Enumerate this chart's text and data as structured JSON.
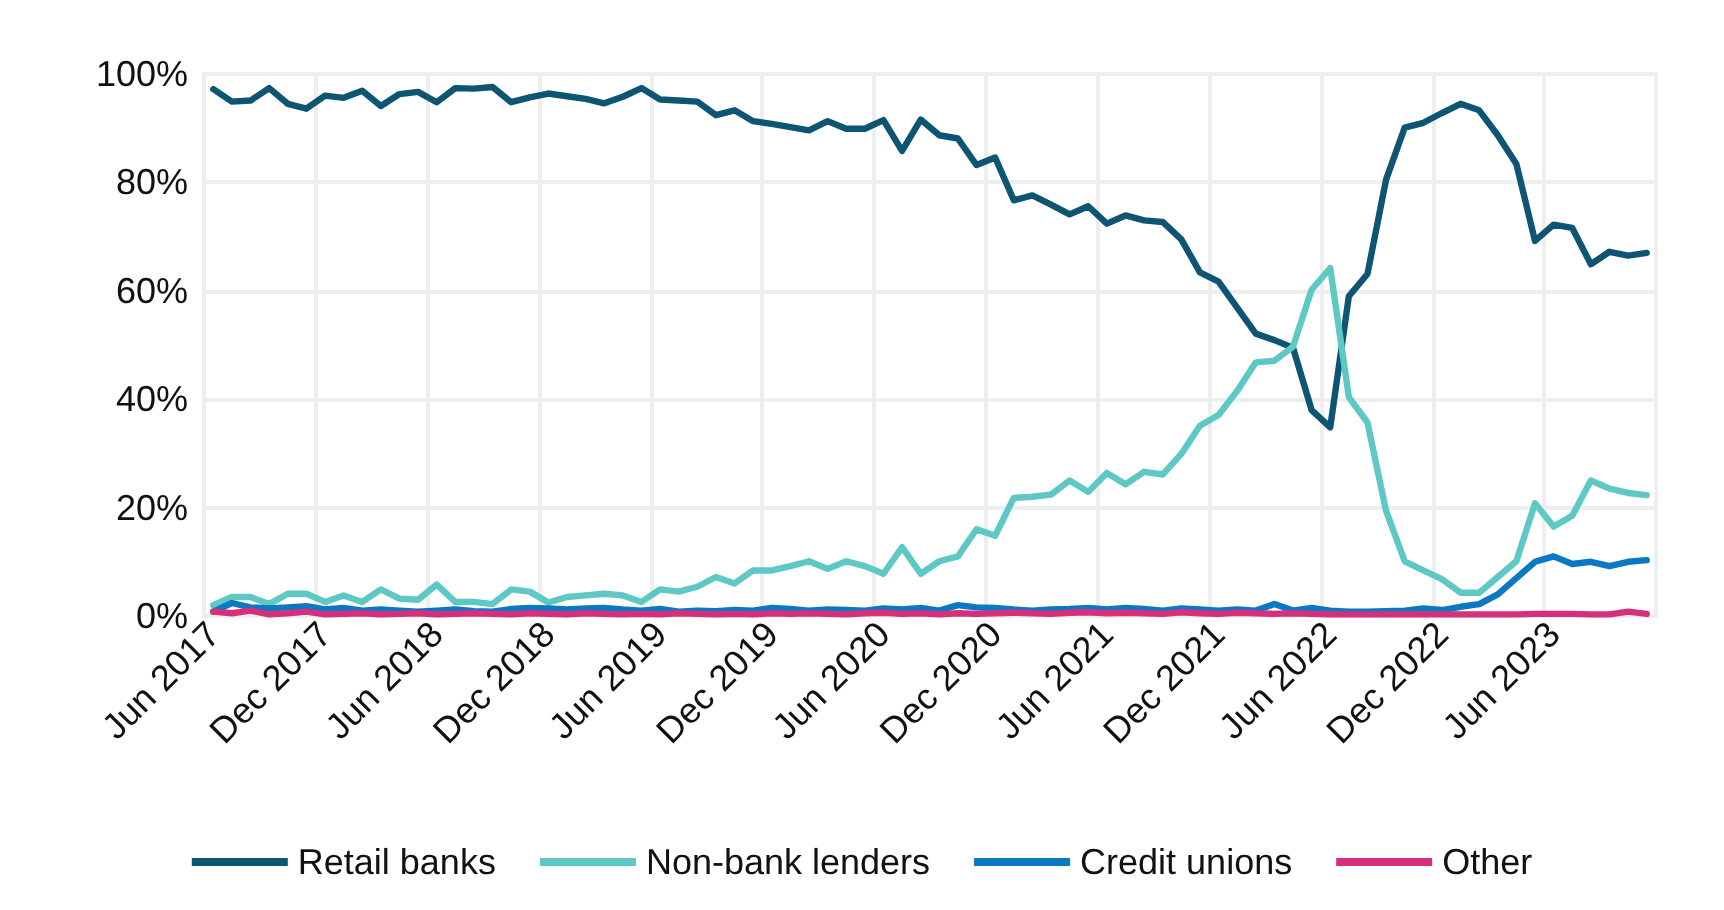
{
  "chart_data": {
    "type": "line",
    "categories": [
      "Jun 2017",
      null,
      null,
      null,
      null,
      null,
      "Dec 2017",
      null,
      null,
      null,
      null,
      null,
      "Jun 2018",
      null,
      null,
      null,
      null,
      null,
      "Dec 2018",
      null,
      null,
      null,
      null,
      null,
      "Jun 2019",
      null,
      null,
      null,
      null,
      null,
      "Dec 2019",
      null,
      null,
      null,
      null,
      null,
      "Jun 2020",
      null,
      null,
      null,
      null,
      null,
      "Dec 2020",
      null,
      null,
      null,
      null,
      null,
      "Jun 2021",
      null,
      null,
      null,
      null,
      null,
      "Dec 2021",
      null,
      null,
      null,
      null,
      null,
      "Jun 2022",
      null,
      null,
      null,
      null,
      null,
      "Dec 2022",
      null,
      null,
      null,
      null,
      null,
      "Jun 2023",
      null,
      null,
      null,
      null,
      null
    ],
    "series": [
      {
        "name": "Retail banks",
        "color": "#0d5572",
        "values": [
          97.2,
          94.9,
          95.1,
          97.4,
          94.5,
          93.6,
          96,
          95.6,
          96.9,
          94.1,
          96.3,
          96.7,
          94.8,
          97.4,
          97.3,
          97.6,
          94.8,
          95.7,
          96.4,
          95.9,
          95.4,
          94.6,
          95.8,
          97.4,
          95.3,
          95.1,
          94.9,
          92.4,
          93.3,
          91.3,
          90.8,
          90.2,
          89.6,
          91.3,
          89.9,
          89.9,
          91.5,
          85.8,
          91.6,
          88.7,
          88.1,
          83.2,
          84.6,
          76.7,
          77.6,
          75.9,
          74.1,
          75.6,
          72.4,
          73.9,
          73,
          72.7,
          69.5,
          63.4,
          61.7,
          56.9,
          52.1,
          50.9,
          49.5,
          38,
          34.8,
          59,
          63.1,
          80.5,
          90.1,
          91,
          92.8,
          94.5,
          93.3,
          88.7,
          83.4,
          69.2,
          72.2,
          71.6,
          64.9,
          67.2,
          66.5,
          67
        ]
      },
      {
        "name": "Non-bank lenders",
        "color": "#5ec8c4",
        "values": [
          2,
          3.5,
          3.5,
          2.2,
          4.1,
          4.1,
          2.6,
          3.8,
          2.6,
          4.9,
          3.2,
          3,
          5.8,
          2.6,
          2.6,
          2.2,
          4.9,
          4.5,
          2.5,
          3.5,
          3.8,
          4.1,
          3.8,
          2.6,
          4.9,
          4.5,
          5.4,
          7.2,
          6,
          8.4,
          8.4,
          9.2,
          10.1,
          8.7,
          10.1,
          9.2,
          7.8,
          12.7,
          7.8,
          10.1,
          11,
          16,
          14.8,
          21.8,
          22,
          22.4,
          25,
          22.9,
          26.4,
          24.3,
          26.6,
          26.1,
          29.9,
          35.1,
          37.1,
          41.5,
          46.8,
          47.1,
          49.7,
          60.2,
          64.2,
          40.4,
          35.7,
          19.4,
          10.1,
          8.4,
          6.8,
          4.3,
          4.3,
          7.2,
          10.1,
          20.8,
          16.5,
          18.5,
          25,
          23.5,
          22.7,
          22.3
        ]
      },
      {
        "name": "Credit unions",
        "color": "#0a78c2",
        "values": [
          0.8,
          2.4,
          1.6,
          1.4,
          1.6,
          1.8,
          1.2,
          1.5,
          1.0,
          1.2,
          1.0,
          0.8,
          1.0,
          1.2,
          0.9,
          0.8,
          1.3,
          1.5,
          1.4,
          1.2,
          1.4,
          1.5,
          1.2,
          1.0,
          1.3,
          0.8,
          1.0,
          0.9,
          1.1,
          1.0,
          1.5,
          1.3,
          1.0,
          1.2,
          1.1,
          1.0,
          1.4,
          1.2,
          1.5,
          1.0,
          2.0,
          1.6,
          1.5,
          1.2,
          1.0,
          1.2,
          1.3,
          1.5,
          1.2,
          1.5,
          1.3,
          1.0,
          1.4,
          1.2,
          1.0,
          1.2,
          1.0,
          2.2,
          1.0,
          1.5,
          1.0,
          0.8,
          0.8,
          0.9,
          1.0,
          1.4,
          1.1,
          1.7,
          2.2,
          4,
          7,
          10,
          11,
          9.6,
          10,
          9.2,
          10,
          10.3
        ]
      },
      {
        "name": "Other",
        "color": "#d4307b",
        "values": [
          0.8,
          0.5,
          1.0,
          0.3,
          0.5,
          0.8,
          0.3,
          0.4,
          0.5,
          0.3,
          0.4,
          0.5,
          0.3,
          0.4,
          0.5,
          0.4,
          0.3,
          0.5,
          0.4,
          0.3,
          0.5,
          0.4,
          0.3,
          0.4,
          0.3,
          0.5,
          0.4,
          0.3,
          0.4,
          0.3,
          0.5,
          0.4,
          0.5,
          0.4,
          0.3,
          0.5,
          0.6,
          0.4,
          0.5,
          0.3,
          0.5,
          0.4,
          0.5,
          0.6,
          0.5,
          0.4,
          0.6,
          0.7,
          0.5,
          0.6,
          0.5,
          0.4,
          0.7,
          0.5,
          0.4,
          0.6,
          0.5,
          0.4,
          0.5,
          0.4,
          0.3,
          0.3,
          0.3,
          0.3,
          0.3,
          0.3,
          0.3,
          0.3,
          0.3,
          0.3,
          0.3,
          0.4,
          0.4,
          0.4,
          0.3,
          0.3,
          0.8,
          0.4
        ]
      }
    ],
    "ylim": [
      0,
      100
    ],
    "yticks": [
      {
        "value": 0,
        "label": "0%"
      },
      {
        "value": 20,
        "label": "20%"
      },
      {
        "value": 40,
        "label": "40%"
      },
      {
        "value": 60,
        "label": "60%"
      },
      {
        "value": 80,
        "label": "80%"
      },
      {
        "value": 100,
        "label": "100%"
      }
    ],
    "grid": true,
    "legend": "bottom",
    "marker": "none",
    "line_style": "solid"
  }
}
